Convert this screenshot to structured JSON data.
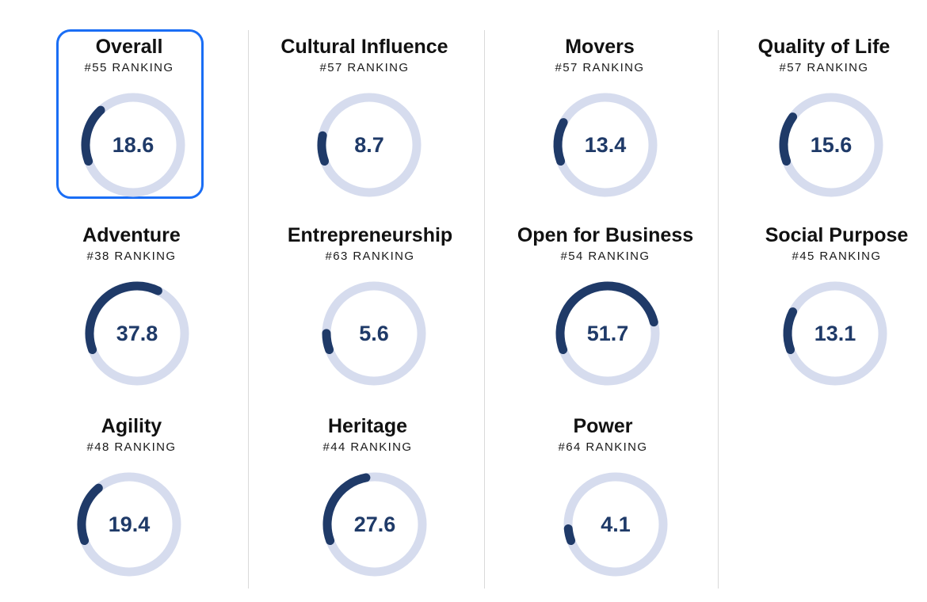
{
  "colors": {
    "track": "#d6dcee",
    "arc": "#1f3a68",
    "highlight": "#1a6ef5"
  },
  "metrics": [
    {
      "title": "Overall",
      "rank": "#55 RANKING",
      "value": "18.6",
      "score": 18.6
    },
    {
      "title": "Cultural Influence",
      "rank": "#57 RANKING",
      "value": "8.7",
      "score": 8.7
    },
    {
      "title": "Movers",
      "rank": "#57 RANKING",
      "value": "13.4",
      "score": 13.4
    },
    {
      "title": "Quality of Life",
      "rank": "#57 RANKING",
      "value": "15.6",
      "score": 15.6
    },
    {
      "title": "Adventure",
      "rank": "#38 RANKING",
      "value": "37.8",
      "score": 37.8
    },
    {
      "title": "Entrepreneurship",
      "rank": "#63 RANKING",
      "value": "5.6",
      "score": 5.6
    },
    {
      "title": "Open for Business",
      "rank": "#54 RANKING",
      "value": "51.7",
      "score": 51.7
    },
    {
      "title": "Social Purpose",
      "rank": "#45 RANKING",
      "value": "13.1",
      "score": 13.1
    },
    {
      "title": "Agility",
      "rank": "#48 RANKING",
      "value": "19.4",
      "score": 19.4
    },
    {
      "title": "Heritage",
      "rank": "#44 RANKING",
      "value": "27.6",
      "score": 27.6
    },
    {
      "title": "Power",
      "rank": "#64 RANKING",
      "value": "4.1",
      "score": 4.1
    }
  ]
}
